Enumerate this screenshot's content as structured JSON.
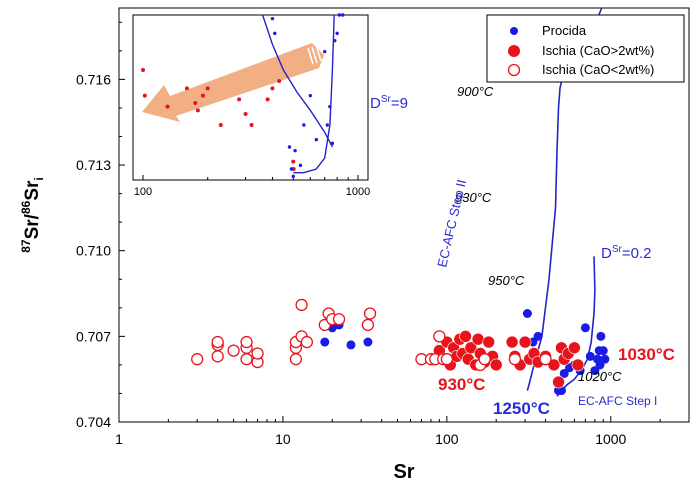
{
  "chart_data": {
    "type": "scatter",
    "xlabel": "Sr",
    "ylabel_parts": [
      "87",
      "Sr/",
      "86",
      "Sr",
      "i"
    ],
    "xscale": "log",
    "xlim": [
      1,
      3000
    ],
    "ylim": [
      0.704,
      0.7185
    ],
    "x_ticks": [
      1,
      10,
      100,
      1000
    ],
    "x_tick_labels": [
      "1",
      "10",
      "100",
      "1000"
    ],
    "y_ticks": [
      0.704,
      0.707,
      0.71,
      0.713,
      0.716
    ],
    "y_tick_labels": [
      "0.704",
      "0.707",
      "0.710",
      "0.713",
      "0.716"
    ],
    "grid": false,
    "legend_position": "top-right",
    "colors": {
      "blue": "#1b1be6",
      "red": "#e8141b",
      "curve": "#2323c8",
      "annotation_blue": "#2b2bd6",
      "arrow": "#f0a878"
    },
    "series": [
      {
        "name": "Procida",
        "style": "filled",
        "color": "#1b1be6",
        "points": [
          [
            18,
            0.7068
          ],
          [
            20,
            0.7073
          ],
          [
            22,
            0.7074
          ],
          [
            26,
            0.7067
          ],
          [
            33,
            0.7068
          ],
          [
            310,
            0.7078
          ],
          [
            335,
            0.7068
          ],
          [
            360,
            0.707
          ],
          [
            480,
            0.7051
          ],
          [
            500,
            0.7051
          ],
          [
            520,
            0.7057
          ],
          [
            560,
            0.7059
          ],
          [
            600,
            0.706
          ],
          [
            650,
            0.7058
          ],
          [
            700,
            0.7073
          ],
          [
            800,
            0.7058
          ],
          [
            830,
            0.7062
          ],
          [
            850,
            0.7065
          ],
          [
            870,
            0.707
          ],
          [
            900,
            0.7065
          ],
          [
            920,
            0.7062
          ],
          [
            860,
            0.706
          ],
          [
            750,
            0.7063
          ]
        ]
      },
      {
        "name": "Ischia (CaO>2wt%)",
        "style": "filled",
        "color": "#e8141b",
        "points": [
          [
            90,
            0.7065
          ],
          [
            95,
            0.7062
          ],
          [
            100,
            0.7068
          ],
          [
            105,
            0.706
          ],
          [
            110,
            0.7066
          ],
          [
            115,
            0.7063
          ],
          [
            120,
            0.7069
          ],
          [
            125,
            0.7064
          ],
          [
            130,
            0.707
          ],
          [
            135,
            0.7062
          ],
          [
            140,
            0.7066
          ],
          [
            150,
            0.706
          ],
          [
            155,
            0.7069
          ],
          [
            160,
            0.7064
          ],
          [
            170,
            0.7061
          ],
          [
            180,
            0.7068
          ],
          [
            190,
            0.7063
          ],
          [
            200,
            0.706
          ],
          [
            250,
            0.7068
          ],
          [
            260,
            0.7063
          ],
          [
            280,
            0.706
          ],
          [
            300,
            0.7068
          ],
          [
            320,
            0.7062
          ],
          [
            340,
            0.7064
          ],
          [
            360,
            0.7061
          ],
          [
            400,
            0.7063
          ],
          [
            450,
            0.706
          ],
          [
            480,
            0.7054
          ],
          [
            500,
            0.7066
          ],
          [
            520,
            0.7062
          ],
          [
            550,
            0.7064
          ],
          [
            600,
            0.7066
          ],
          [
            630,
            0.706
          ]
        ]
      },
      {
        "name": "Ischia (CaO<2wt%)",
        "style": "open",
        "color": "#e8141b",
        "points": [
          [
            3,
            0.7062
          ],
          [
            4,
            0.7063
          ],
          [
            4,
            0.7067
          ],
          [
            4,
            0.7068
          ],
          [
            5,
            0.7065
          ],
          [
            6,
            0.7062
          ],
          [
            6,
            0.7066
          ],
          [
            6,
            0.7068
          ],
          [
            7,
            0.7061
          ],
          [
            7,
            0.7064
          ],
          [
            12,
            0.7062
          ],
          [
            12,
            0.7066
          ],
          [
            12,
            0.7068
          ],
          [
            13,
            0.707
          ],
          [
            13,
            0.7081
          ],
          [
            14,
            0.7068
          ],
          [
            18,
            0.7074
          ],
          [
            19,
            0.7078
          ],
          [
            20,
            0.7076
          ],
          [
            22,
            0.7076
          ],
          [
            33,
            0.7074
          ],
          [
            34,
            0.7078
          ],
          [
            70,
            0.7062
          ],
          [
            80,
            0.7062
          ],
          [
            85,
            0.7062
          ],
          [
            90,
            0.707
          ],
          [
            95,
            0.7062
          ],
          [
            100,
            0.7062
          ],
          [
            160,
            0.706
          ],
          [
            170,
            0.7062
          ],
          [
            260,
            0.7062
          ],
          [
            400,
            0.7062
          ]
        ]
      }
    ],
    "curves": [
      {
        "label": "EC-AFC Step II",
        "points": [
          [
            880,
            0.7185
          ],
          [
            760,
            0.7176
          ],
          [
            640,
            0.7168
          ],
          [
            560,
            0.7163
          ],
          [
            500,
            0.7159
          ],
          [
            490,
            0.7157
          ],
          [
            480,
            0.715
          ],
          [
            470,
            0.7135
          ],
          [
            460,
            0.7115
          ],
          [
            420,
            0.709
          ],
          [
            380,
            0.707
          ],
          [
            340,
            0.706
          ],
          [
            320,
            0.7054
          ],
          [
            310,
            0.7051
          ]
        ]
      },
      {
        "label": "EC-AFC Step I",
        "points": [
          [
            470,
            0.7049
          ],
          [
            500,
            0.7051
          ],
          [
            540,
            0.7053
          ],
          [
            600,
            0.7055
          ],
          [
            660,
            0.7058
          ],
          [
            720,
            0.7062
          ],
          [
            760,
            0.7068
          ],
          [
            790,
            0.7078
          ],
          [
            800,
            0.7086
          ],
          [
            790,
            0.7098
          ]
        ]
      }
    ],
    "annotations": [
      {
        "text": "900°C",
        "x": 390,
        "y": 0.7152
      },
      {
        "text": "930°C",
        "x": 260,
        "y": 0.7127
      },
      {
        "text": "950°C",
        "x": 180,
        "y": 0.7083
      },
      {
        "text": "1020°C",
        "x": 850,
        "y": 0.7057
      },
      {
        "text": "DSr=9",
        "x": 260,
        "y": 0.7145
      },
      {
        "text": "DSr=0.2",
        "x": 820,
        "y": 0.7097
      },
      {
        "text": "930°C",
        "x": 120,
        "y": 0.7054
      },
      {
        "text": "1030°C",
        "x": 900,
        "y": 0.7061
      },
      {
        "text": "1250°C",
        "x": 320,
        "y": 0.7047
      },
      {
        "text": "EC-AFC Step I",
        "x": 520,
        "y": 0.7051
      },
      {
        "text": "EC-AFC Step II",
        "x": 330,
        "y": 0.711
      }
    ],
    "inset": {
      "xscale": "log",
      "xlim": [
        100,
        1000
      ],
      "ylim": [
        0.70545,
        0.7059
      ],
      "x_ticks": [
        100,
        1000
      ],
      "x_tick_labels": [
        "100",
        "1000"
      ],
      "red_points": [
        [
          100,
          0.70575
        ],
        [
          102,
          0.70568
        ],
        [
          130,
          0.70565
        ],
        [
          160,
          0.7057
        ],
        [
          175,
          0.70566
        ],
        [
          180,
          0.70564
        ],
        [
          190,
          0.70568
        ],
        [
          200,
          0.7057
        ],
        [
          230,
          0.7056
        ],
        [
          280,
          0.70567
        ],
        [
          300,
          0.70563
        ],
        [
          320,
          0.7056
        ],
        [
          380,
          0.70567
        ],
        [
          400,
          0.7057
        ],
        [
          430,
          0.70572
        ],
        [
          500,
          0.7055
        ],
        [
          502,
          0.70548
        ]
      ],
      "blue_points": [
        [
          400,
          0.70589
        ],
        [
          410,
          0.70585
        ],
        [
          480,
          0.70554
        ],
        [
          490,
          0.70548
        ],
        [
          500,
          0.70546
        ],
        [
          510,
          0.70553
        ],
        [
          540,
          0.70549
        ],
        [
          560,
          0.7056
        ],
        [
          600,
          0.70568
        ],
        [
          640,
          0.70556
        ],
        [
          700,
          0.7058
        ],
        [
          720,
          0.7056
        ],
        [
          740,
          0.70565
        ],
        [
          760,
          0.70555
        ],
        [
          780,
          0.70583
        ],
        [
          800,
          0.70585
        ],
        [
          820,
          0.7059
        ],
        [
          850,
          0.7059
        ]
      ],
      "curves": [
        {
          "points": [
            [
              360,
              0.7059
            ],
            [
              400,
              0.70582
            ],
            [
              450,
              0.70575
            ],
            [
              520,
              0.70569
            ],
            [
              600,
              0.70564
            ],
            [
              700,
              0.70558
            ],
            [
              760,
              0.70554
            ]
          ]
        },
        {
          "points": [
            [
              500,
              0.70547
            ],
            [
              560,
              0.70547
            ],
            [
              640,
              0.70548
            ],
            [
              700,
              0.70551
            ],
            [
              740,
              0.7056
            ],
            [
              760,
              0.70575
            ],
            [
              775,
              0.7059
            ]
          ]
        }
      ]
    }
  }
}
